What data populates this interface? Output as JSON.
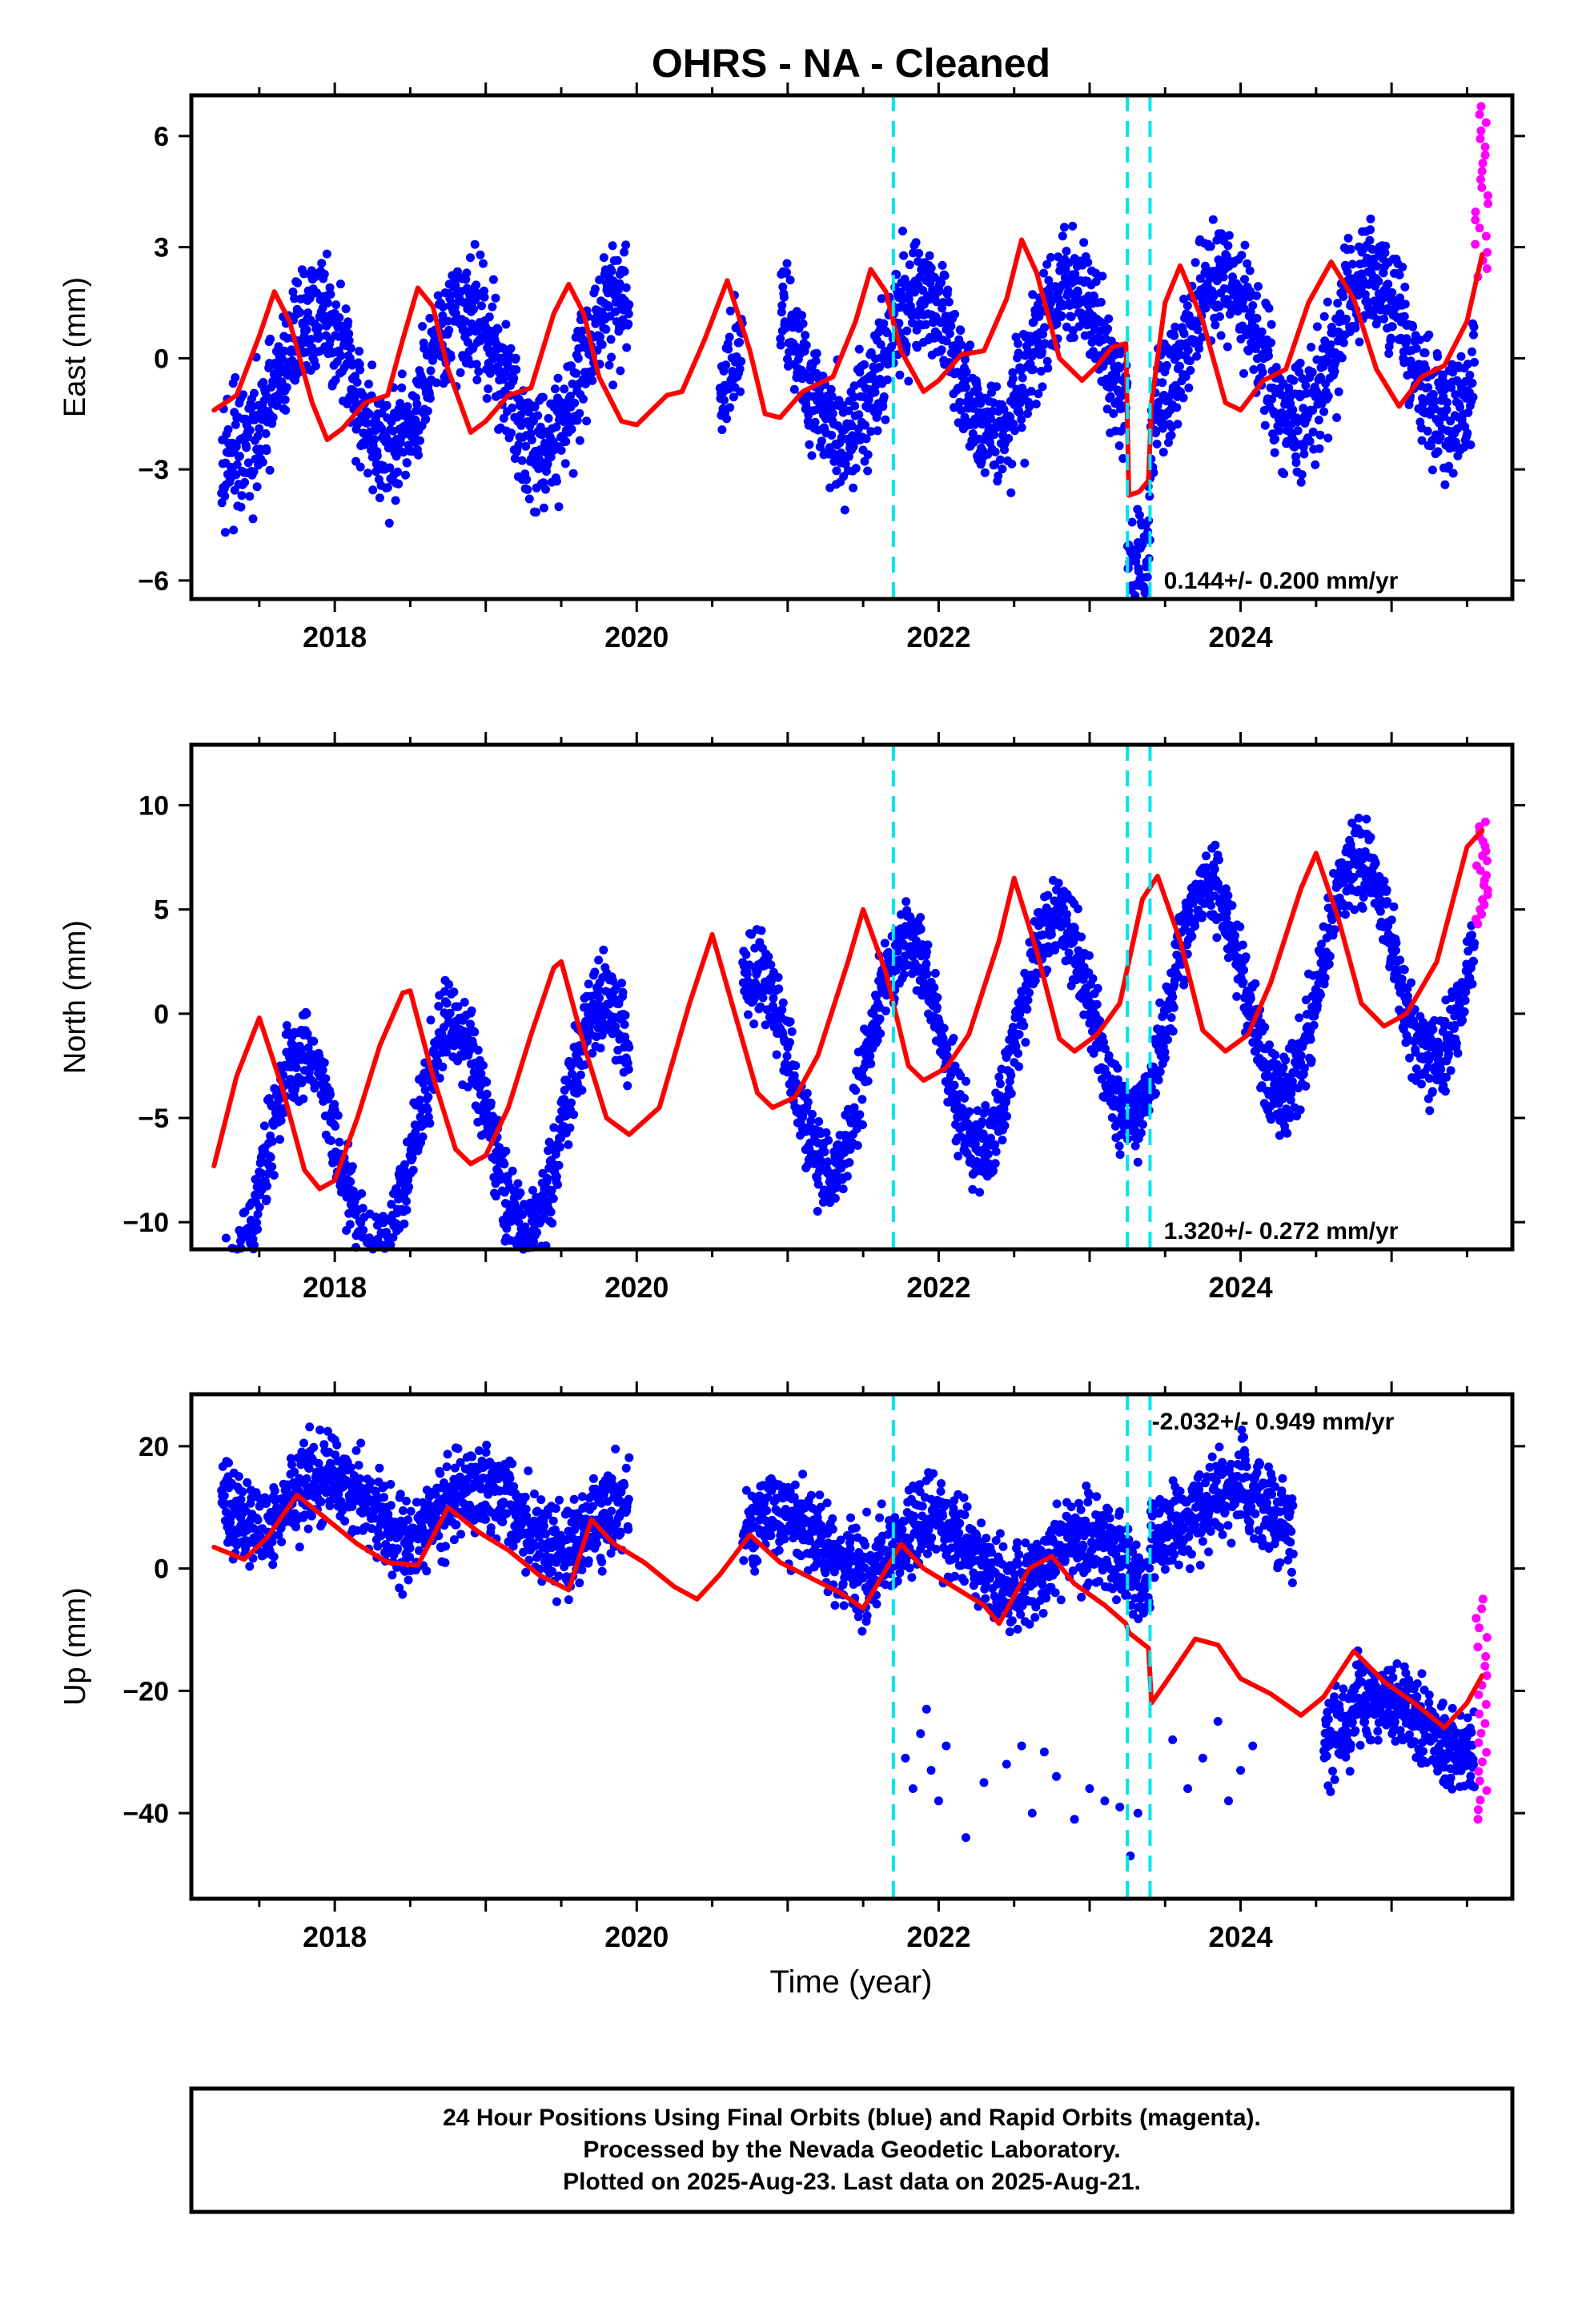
{
  "title": "OHRS  - NA - Cleaned",
  "xlabel": "Time (year)",
  "footer": [
    "24 Hour Positions Using Final Orbits (blue) and Rapid Orbits (magenta).",
    "Processed by the Nevada Geodetic Laboratory.",
    "Plotted on 2025-Aug-23. Last data on 2025-Aug-21."
  ],
  "colors": {
    "final": "#0000ff",
    "rapid": "#ff00ff",
    "model": "#ff0000",
    "break": "#00e5ee"
  },
  "chart_data": [
    {
      "type": "scatter",
      "ylabel": "East (mm)",
      "rate_label": "0.144+/- 0.200 mm/yr",
      "xlim": [
        2017.05,
        2025.8
      ],
      "ylim": [
        -6.5,
        7.1
      ],
      "xticks": [
        2018,
        2020,
        2022,
        2024
      ],
      "xtick_labels": [
        "2018",
        "2020",
        "2022",
        "2024"
      ],
      "yticks": [
        -6,
        -3,
        0,
        3,
        6
      ],
      "ytick_labels": [
        "−6",
        "−3",
        "0",
        "3",
        "6"
      ],
      "breaks": [
        2021.7,
        2023.25,
        2023.4
      ],
      "model": {
        "x": [
          2017.2,
          2017.35,
          2017.5,
          2017.6,
          2017.7,
          2017.85,
          2017.95,
          2018.05,
          2018.2,
          2018.35,
          2018.45,
          2018.55,
          2018.65,
          2018.75,
          2018.9,
          2019.0,
          2019.15,
          2019.3,
          2019.45,
          2019.55,
          2019.65,
          2019.75,
          2019.9,
          2020.0,
          2020.2,
          2020.3,
          2020.45,
          2020.6,
          2020.75,
          2020.85,
          2020.95,
          2021.1,
          2021.3,
          2021.45,
          2021.55,
          2021.65,
          2021.75,
          2021.9,
          2022.0,
          2022.15,
          2022.3,
          2022.45,
          2022.55,
          2022.65,
          2022.8,
          2022.95,
          2023.05,
          2023.15,
          2023.24,
          2023.26,
          2023.33,
          2023.39,
          2023.41,
          2023.5,
          2023.6,
          2023.75,
          2023.9,
          2024.0,
          2024.15,
          2024.3,
          2024.45,
          2024.6,
          2024.75,
          2024.9,
          2025.05,
          2025.2,
          2025.35,
          2025.5,
          2025.6
        ],
        "y": [
          -1.4,
          -1.0,
          0.6,
          1.8,
          1.0,
          -1.2,
          -2.2,
          -1.9,
          -1.2,
          -1.0,
          0.5,
          1.9,
          1.4,
          -0.3,
          -2.0,
          -1.7,
          -1.0,
          -0.8,
          1.2,
          2.0,
          1.2,
          -0.5,
          -1.7,
          -1.8,
          -1.0,
          -0.9,
          0.5,
          2.1,
          0.2,
          -1.5,
          -1.6,
          -0.9,
          -0.5,
          1.0,
          2.4,
          1.8,
          0.2,
          -0.9,
          -0.6,
          0.1,
          0.2,
          1.6,
          3.2,
          2.3,
          0.0,
          -0.6,
          -0.2,
          0.3,
          0.4,
          -3.7,
          -3.6,
          -3.3,
          -1.2,
          1.5,
          2.5,
          1.0,
          -1.2,
          -1.4,
          -0.6,
          -0.3,
          1.5,
          2.6,
          1.6,
          -0.3,
          -1.3,
          -0.5,
          -0.2,
          1.0,
          2.8
        ]
      },
      "series": [
        {
          "name": "Final Orbits (blue)",
          "amp": 1.9,
          "phase": 0.62,
          "trend": 0.144,
          "offset": -0.2,
          "sigma": 0.8,
          "gaps": [
            [
              2019.95,
              2020.55
            ],
            [
              2020.7,
              2020.95
            ]
          ],
          "steps": [
            [
              2023.25,
              2023.4,
              -3.8
            ]
          ]
        },
        {
          "name": "Rapid Orbits (magenta)",
          "x0": 2025.55,
          "x1": 2025.64,
          "n": 22,
          "ymin": 2.2,
          "ymax": 6.8
        }
      ]
    },
    {
      "type": "scatter",
      "ylabel": "North (mm)",
      "rate_label": "1.320+/- 0.272 mm/yr",
      "xlim": [
        2017.05,
        2025.8
      ],
      "ylim": [
        -11.3,
        12.9
      ],
      "xticks": [
        2018,
        2020,
        2022,
        2024
      ],
      "xtick_labels": [
        "2018",
        "2020",
        "2022",
        "2024"
      ],
      "yticks": [
        -10,
        -5,
        0,
        5,
        10
      ],
      "ytick_labels": [
        "−10",
        "−5",
        "0",
        "5",
        "10"
      ],
      "breaks": [
        2021.7,
        2023.25,
        2023.4
      ],
      "model": {
        "x": [
          2017.2,
          2017.35,
          2017.5,
          2017.65,
          2017.8,
          2017.9,
          2018.0,
          2018.15,
          2018.3,
          2018.45,
          2018.5,
          2018.65,
          2018.8,
          2018.9,
          2019.0,
          2019.15,
          2019.3,
          2019.45,
          2019.5,
          2019.65,
          2019.8,
          2019.95,
          2020.15,
          2020.35,
          2020.5,
          2020.65,
          2020.8,
          2020.9,
          2021.05,
          2021.2,
          2021.4,
          2021.5,
          2021.65,
          2021.8,
          2021.9,
          2022.05,
          2022.2,
          2022.4,
          2022.5,
          2022.65,
          2022.8,
          2022.9,
          2023.05,
          2023.2,
          2023.35,
          2023.45,
          2023.6,
          2023.75,
          2023.9,
          2024.05,
          2024.2,
          2024.4,
          2024.5,
          2024.65,
          2024.8,
          2024.95,
          2025.1,
          2025.3,
          2025.5,
          2025.6
        ],
        "y": [
          -7.3,
          -3.0,
          -0.2,
          -3.5,
          -7.5,
          -8.4,
          -8.0,
          -5.0,
          -1.5,
          1.0,
          1.1,
          -3.0,
          -6.5,
          -7.2,
          -6.8,
          -4.5,
          -1.0,
          2.2,
          2.5,
          -1.5,
          -5.0,
          -5.8,
          -4.5,
          0.5,
          3.8,
          0.0,
          -3.8,
          -4.5,
          -4.0,
          -2.0,
          2.5,
          5.0,
          2.0,
          -2.5,
          -3.2,
          -2.6,
          -1.0,
          3.5,
          6.5,
          3.0,
          -1.2,
          -1.8,
          -1.0,
          0.5,
          5.5,
          6.6,
          3.5,
          -0.8,
          -1.8,
          -1.0,
          1.5,
          6.0,
          7.7,
          4.5,
          0.5,
          -0.6,
          0.0,
          2.5,
          8.0,
          8.8
        ]
      },
      "series": [
        {
          "name": "Final Orbits (blue)",
          "amp": 5.2,
          "phase": 0.53,
          "trend": 1.32,
          "offset": -2.3,
          "sigma": 1.0,
          "gaps": [
            [
              2019.95,
              2020.7
            ]
          ],
          "steps": []
        },
        {
          "name": "Rapid Orbits (magenta)",
          "x0": 2025.55,
          "x1": 2025.64,
          "n": 22,
          "ymin": 4.3,
          "ymax": 9.2
        }
      ]
    },
    {
      "type": "scatter",
      "ylabel": "Up (mm)",
      "rate_label": "-2.032+/- 0.949 mm/yr",
      "xlim": [
        2017.05,
        2025.8
      ],
      "ylim": [
        -54,
        28.5
      ],
      "xticks": [
        2018,
        2020,
        2022,
        2024
      ],
      "xtick_labels": [
        "2018",
        "2020",
        "2022",
        "2024"
      ],
      "yticks": [
        -40,
        -20,
        0,
        20
      ],
      "ytick_labels": [
        "−40",
        "−20",
        "0",
        "20"
      ],
      "breaks": [
        2021.7,
        2023.25,
        2023.4
      ],
      "model": {
        "x": [
          2017.2,
          2017.4,
          2017.55,
          2017.75,
          2017.95,
          2018.15,
          2018.35,
          2018.55,
          2018.75,
          2018.95,
          2019.15,
          2019.35,
          2019.55,
          2019.7,
          2019.85,
          2020.05,
          2020.25,
          2020.4,
          2020.55,
          2020.75,
          2020.95,
          2021.15,
          2021.35,
          2021.5,
          2021.75,
          2021.9,
          2022.1,
          2022.3,
          2022.4,
          2022.6,
          2022.75,
          2022.9,
          2023.1,
          2023.24,
          2023.26,
          2023.39,
          2023.41,
          2023.55,
          2023.7,
          2023.85,
          2024.0,
          2024.2,
          2024.4,
          2024.55,
          2024.75,
          2024.95,
          2025.15,
          2025.35,
          2025.5,
          2025.6
        ],
        "y": [
          3.5,
          1.5,
          5.0,
          12.0,
          8.0,
          4.0,
          1.0,
          0.5,
          10.0,
          6.0,
          3.0,
          -1.0,
          -3.5,
          8.0,
          4.0,
          1.0,
          -3.0,
          -5.0,
          -1.0,
          5.5,
          1.0,
          -1.5,
          -4.0,
          -6.5,
          4.0,
          0.0,
          -3.0,
          -6.0,
          -9.0,
          0.0,
          2.0,
          -2.5,
          -6.0,
          -9.0,
          -10.5,
          -13.0,
          -22.0,
          -17.0,
          -11.5,
          -12.5,
          -18.0,
          -20.5,
          -24.0,
          -21.0,
          -13.5,
          -18.5,
          -22.0,
          -26.0,
          -22.0,
          -17.5
        ]
      },
      "series": [
        {
          "name": "Final Orbits (blue)",
          "amp": 4.5,
          "phase": 0.72,
          "trend": -2.0,
          "offset": 4.0,
          "sigma": 3.5,
          "gaps": [
            [
              2019.95,
              2020.7
            ],
            [
              2024.35,
              2024.55
            ]
          ],
          "steps": [
            [
              2023.4,
              2024.35,
              10.0
            ],
            [
              2024.55,
              2025.7,
              -22.0
            ]
          ]
        },
        {
          "name": "Rapid Orbits (magenta)",
          "x0": 2025.55,
          "x1": 2025.64,
          "n": 24,
          "ymin": -41.0,
          "ymax": -5.0
        }
      ],
      "outliers": {
        "x": [
          2021.78,
          2021.83,
          2021.88,
          2021.92,
          2021.95,
          2022.0,
          2022.05,
          2022.18,
          2022.3,
          2022.45,
          2022.55,
          2022.62,
          2022.7,
          2022.78,
          2022.9,
          2023.0,
          2023.1,
          2023.2,
          2023.27,
          2023.32,
          2023.55,
          2023.65,
          2023.75,
          2023.85,
          2023.92,
          2024.0,
          2024.08
        ],
        "y": [
          -31.0,
          -36.0,
          -27.0,
          -23.0,
          -33.0,
          -38.0,
          -29.0,
          -44.0,
          -35.0,
          -32.0,
          -29.0,
          -40.0,
          -30.0,
          -34.0,
          -41.0,
          -36.0,
          -38.0,
          -39.0,
          -47.0,
          -40.0,
          -28.0,
          -36.0,
          -31.0,
          -25.0,
          -38.0,
          -33.0,
          -29.0
        ]
      }
    }
  ]
}
